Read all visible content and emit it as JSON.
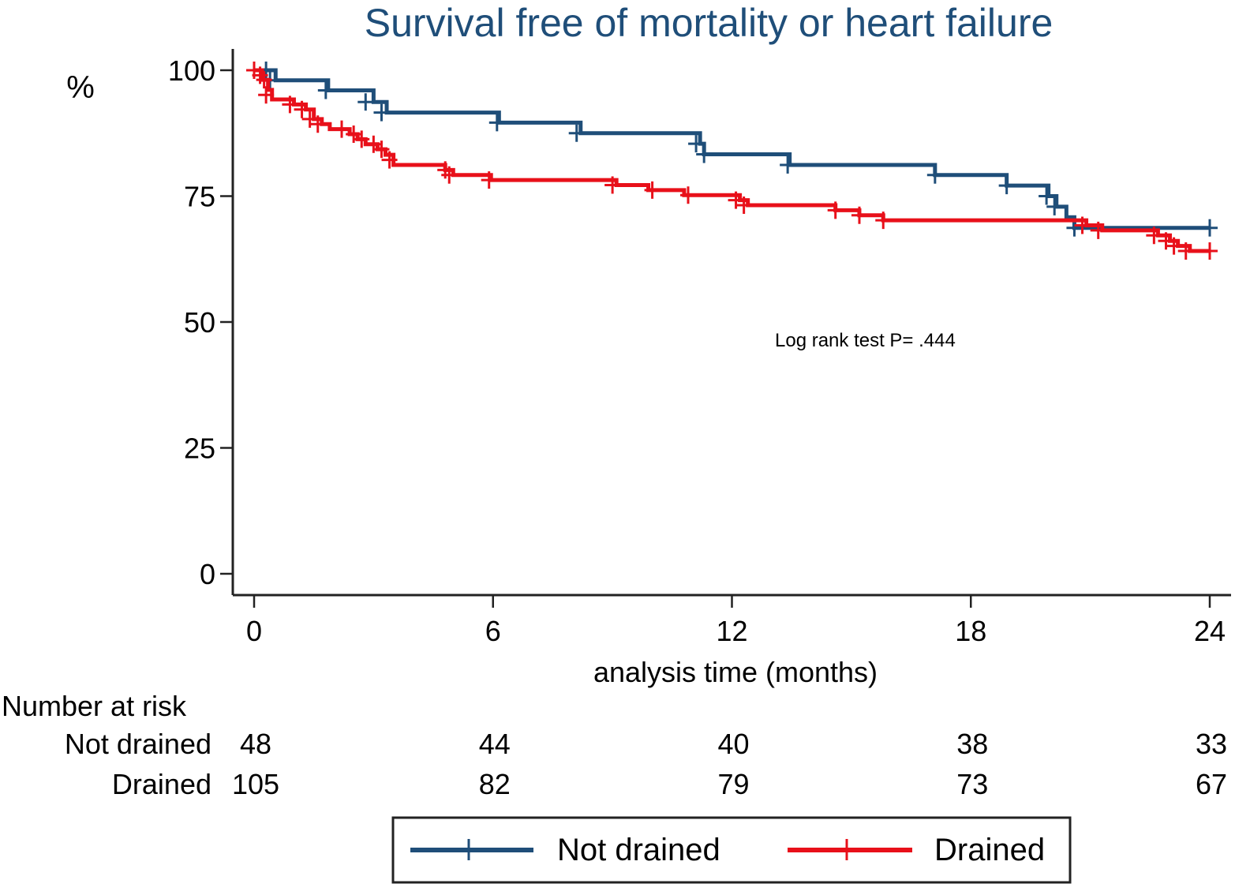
{
  "chart_data": {
    "type": "line",
    "subtype": "kaplan-meier-step",
    "title": "Survival free of mortality or heart failure",
    "xlabel": "analysis time (months)",
    "ylabel": "%",
    "xlim": [
      0,
      24
    ],
    "ylim": [
      0,
      100
    ],
    "xticks": [
      0,
      6,
      12,
      18,
      24
    ],
    "yticks": [
      0,
      25,
      50,
      75,
      100
    ],
    "grid": false,
    "annotation": "Log rank test P= .444",
    "series": [
      {
        "name": "Not drained",
        "color": "#1f4e79",
        "steps": [
          [
            0,
            100
          ],
          [
            0.54,
            98.0
          ],
          [
            1.86,
            96.0
          ],
          [
            3.0,
            93.7
          ],
          [
            3.33,
            91.6
          ],
          [
            6.15,
            89.6
          ],
          [
            8.2,
            87.5
          ],
          [
            11.2,
            85.4
          ],
          [
            11.3,
            83.3
          ],
          [
            13.45,
            81.2
          ],
          [
            17.1,
            79.2
          ],
          [
            18.9,
            77.1
          ],
          [
            19.95,
            75.0
          ],
          [
            20.15,
            72.9
          ],
          [
            20.4,
            70.8
          ],
          [
            20.6,
            68.7
          ],
          [
            24,
            68.7
          ]
        ],
        "censored": [
          [
            0.3,
            100
          ],
          [
            0.4,
            98.0
          ],
          [
            1.8,
            96.0
          ],
          [
            2.8,
            93.7
          ],
          [
            3.2,
            91.6
          ],
          [
            6.1,
            89.6
          ],
          [
            8.1,
            87.5
          ],
          [
            11.1,
            85.4
          ],
          [
            11.3,
            83.3
          ],
          [
            13.4,
            81.2
          ],
          [
            17.1,
            79.2
          ],
          [
            18.9,
            77.1
          ],
          [
            19.9,
            75.0
          ],
          [
            20.1,
            72.9
          ],
          [
            20.6,
            68.7
          ],
          [
            24,
            68.7
          ]
        ]
      },
      {
        "name": "Drained",
        "color": "#e8101a",
        "steps": [
          [
            0,
            100
          ],
          [
            0.2,
            98.1
          ],
          [
            0.35,
            96.1
          ],
          [
            0.45,
            94.2
          ],
          [
            1.0,
            93.2
          ],
          [
            1.3,
            92.2
          ],
          [
            1.5,
            90.3
          ],
          [
            1.7,
            89.3
          ],
          [
            1.9,
            88.3
          ],
          [
            2.4,
            87.3
          ],
          [
            2.6,
            86.3
          ],
          [
            2.8,
            85.3
          ],
          [
            3.1,
            84.3
          ],
          [
            3.3,
            83.2
          ],
          [
            3.5,
            81.2
          ],
          [
            4.8,
            80.2
          ],
          [
            5.0,
            79.2
          ],
          [
            5.95,
            78.2
          ],
          [
            9.1,
            77.2
          ],
          [
            9.9,
            76.2
          ],
          [
            10.8,
            75.2
          ],
          [
            12.2,
            74.2
          ],
          [
            12.4,
            73.2
          ],
          [
            14.6,
            72.2
          ],
          [
            15.2,
            71.2
          ],
          [
            15.8,
            70.2
          ],
          [
            20.9,
            69.2
          ],
          [
            21.3,
            68.2
          ],
          [
            22.7,
            67.2
          ],
          [
            23.0,
            66.1
          ],
          [
            23.2,
            65.1
          ],
          [
            23.5,
            64.1
          ],
          [
            24,
            64.1
          ]
        ],
        "censored": [
          [
            0.0,
            100
          ],
          [
            0.15,
            99.0
          ],
          [
            0.25,
            98.1
          ],
          [
            0.3,
            95.1
          ],
          [
            0.9,
            93.2
          ],
          [
            1.2,
            92.2
          ],
          [
            1.4,
            90.3
          ],
          [
            1.6,
            89.3
          ],
          [
            2.2,
            88.3
          ],
          [
            2.5,
            87.3
          ],
          [
            2.7,
            86.3
          ],
          [
            3.0,
            85.3
          ],
          [
            3.2,
            84.3
          ],
          [
            3.4,
            82.2
          ],
          [
            4.8,
            80.2
          ],
          [
            4.9,
            79.2
          ],
          [
            5.9,
            78.2
          ],
          [
            9.0,
            77.2
          ],
          [
            10.0,
            76.2
          ],
          [
            10.9,
            75.2
          ],
          [
            12.1,
            74.2
          ],
          [
            12.3,
            73.2
          ],
          [
            14.6,
            72.2
          ],
          [
            15.2,
            71.2
          ],
          [
            15.8,
            70.2
          ],
          [
            20.8,
            69.2
          ],
          [
            21.2,
            68.2
          ],
          [
            22.6,
            67.2
          ],
          [
            22.9,
            66.1
          ],
          [
            23.1,
            65.1
          ],
          [
            23.4,
            64.1
          ],
          [
            24,
            64.1
          ]
        ]
      }
    ],
    "legend": {
      "placement": "bottom",
      "entries": [
        "Not drained",
        "Drained"
      ]
    },
    "risk_table": {
      "title": "Number at risk",
      "times": [
        0,
        6,
        12,
        18,
        24
      ],
      "rows": [
        {
          "label": "Not drained",
          "values": [
            48,
            44,
            40,
            38,
            33
          ]
        },
        {
          "label": "Drained",
          "values": [
            105,
            82,
            79,
            73,
            67
          ]
        }
      ]
    }
  }
}
